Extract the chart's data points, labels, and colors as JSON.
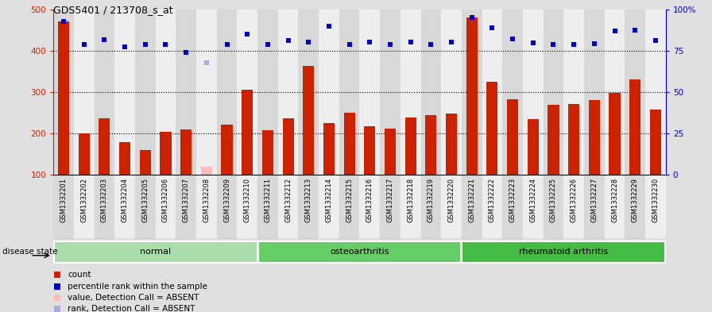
{
  "title": "GDS5401 / 213708_s_at",
  "samples": [
    "GSM1332201",
    "GSM1332202",
    "GSM1332203",
    "GSM1332204",
    "GSM1332205",
    "GSM1332206",
    "GSM1332207",
    "GSM1332208",
    "GSM1332209",
    "GSM1332210",
    "GSM1332211",
    "GSM1332212",
    "GSM1332213",
    "GSM1332214",
    "GSM1332215",
    "GSM1332216",
    "GSM1332217",
    "GSM1332218",
    "GSM1332219",
    "GSM1332220",
    "GSM1332221",
    "GSM1332222",
    "GSM1332223",
    "GSM1332224",
    "GSM1332225",
    "GSM1332226",
    "GSM1332227",
    "GSM1332228",
    "GSM1332229",
    "GSM1332230"
  ],
  "counts": [
    470,
    200,
    237,
    178,
    160,
    204,
    210,
    120,
    222,
    305,
    207,
    237,
    363,
    225,
    250,
    217,
    212,
    238,
    245,
    248,
    480,
    325,
    283,
    235,
    270,
    272,
    280,
    297,
    330,
    258
  ],
  "absent_bar_indices": [
    7
  ],
  "absent_dot_indices": [
    7
  ],
  "percentile_ranks_left_scale": [
    470,
    416,
    426,
    410,
    416,
    416,
    395,
    370,
    416,
    440,
    416,
    425,
    420,
    460,
    416,
    420,
    416,
    420,
    416,
    420,
    480,
    455,
    428,
    418,
    416,
    416,
    417,
    448,
    450,
    424
  ],
  "groups": [
    {
      "label": "normal",
      "start": 0,
      "end": 10
    },
    {
      "label": "osteoarthritis",
      "start": 10,
      "end": 20
    },
    {
      "label": "rheumatoid arthritis",
      "start": 20,
      "end": 30
    }
  ],
  "group_colors": [
    "#aaddaa",
    "#66cc66",
    "#44bb44"
  ],
  "ylim": [
    100,
    500
  ],
  "left_ticks": [
    100,
    200,
    300,
    400,
    500
  ],
  "right_ticks_pos": [
    100,
    200,
    300,
    400,
    500
  ],
  "right_tick_labels": [
    "0",
    "25",
    "50",
    "75",
    "100%"
  ],
  "hlines": [
    200,
    300,
    400
  ],
  "bar_color": "#cc2200",
  "bar_absent_color": "#ffbbbb",
  "dot_color": "#0000cc",
  "dot_absent_color": "#aaaadd",
  "col_even": "#d8d8d8",
  "col_odd": "#eeeeee",
  "bg_color": "#e0e0e0",
  "plot_bg": "#ffffff",
  "legend_items": [
    {
      "label": "count",
      "color": "#cc2200"
    },
    {
      "label": "percentile rank within the sample",
      "color": "#0000cc"
    },
    {
      "label": "value, Detection Call = ABSENT",
      "color": "#ffbbbb"
    },
    {
      "label": "rank, Detection Call = ABSENT",
      "color": "#aaaadd"
    }
  ],
  "disease_state_label": "disease state"
}
